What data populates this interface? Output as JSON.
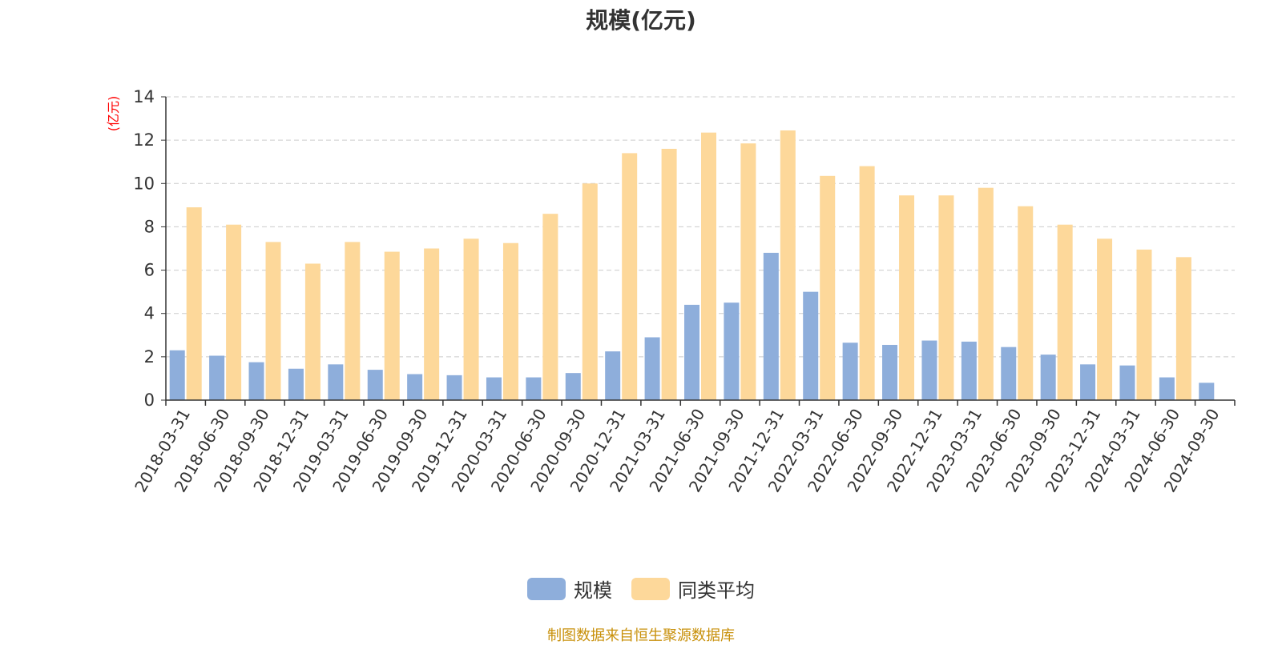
{
  "chart_data": {
    "type": "bar",
    "title": "规模(亿元)",
    "ylabel": "(亿元)",
    "ylim": [
      0,
      14
    ],
    "yticks": [
      0,
      2,
      4,
      6,
      8,
      10,
      12,
      14
    ],
    "grid": true,
    "legend_position": "bottom",
    "categories": [
      "2018-03-31",
      "2018-06-30",
      "2018-09-30",
      "2018-12-31",
      "2019-03-31",
      "2019-06-30",
      "2019-09-30",
      "2019-12-31",
      "2020-03-31",
      "2020-06-30",
      "2020-09-30",
      "2020-12-31",
      "2021-03-31",
      "2021-06-30",
      "2021-09-30",
      "2021-12-31",
      "2022-03-31",
      "2022-06-30",
      "2022-09-30",
      "2022-12-31",
      "2023-03-31",
      "2023-06-30",
      "2023-09-30",
      "2023-12-31",
      "2024-03-31",
      "2024-06-30",
      "2024-09-30"
    ],
    "series": [
      {
        "name": "规模",
        "color": "#8eaedb",
        "values": [
          2.3,
          2.05,
          1.75,
          1.45,
          1.65,
          1.4,
          1.2,
          1.15,
          1.05,
          1.05,
          1.25,
          2.25,
          2.9,
          4.4,
          4.5,
          6.8,
          5.0,
          2.65,
          2.55,
          2.75,
          2.7,
          2.45,
          2.1,
          1.65,
          1.6,
          1.05,
          0.8
        ]
      },
      {
        "name": "同类平均",
        "color": "#fdd89a",
        "values": [
          8.9,
          8.1,
          7.3,
          6.3,
          7.3,
          6.85,
          7.0,
          7.45,
          7.25,
          8.6,
          10.0,
          11.4,
          11.6,
          12.35,
          11.85,
          12.45,
          10.35,
          10.8,
          9.45,
          9.45,
          9.8,
          8.95,
          8.1,
          7.45,
          6.95,
          6.6,
          null
        ]
      }
    ]
  },
  "source_text": "制图数据来自恒生聚源数据库",
  "colors": {
    "title": "#333333",
    "axis": "#333333",
    "grid": "#cccccc",
    "ylabel": "#ff0000",
    "source": "#c8900a"
  }
}
